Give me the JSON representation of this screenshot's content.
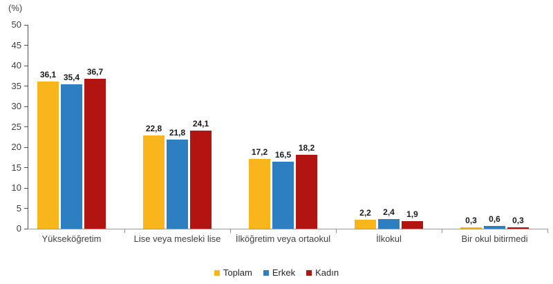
{
  "chart_data": {
    "type": "bar",
    "unit_label": "(%)",
    "title": "",
    "xlabel": "",
    "ylabel": "(%)",
    "ylim": [
      0,
      50
    ],
    "grid": false,
    "categories": [
      "Yükseköğretim",
      "Lise veya mesleki lise",
      "İlköğretim veya ortaokul",
      "İlkokul",
      "Bir okul bitirmedi"
    ],
    "series": [
      {
        "name": "Toplam",
        "color": "#F9B51C",
        "values": [
          36.1,
          22.8,
          17.2,
          2.2,
          0.3
        ],
        "labels": [
          "36,1",
          "22,8",
          "17,2",
          "2,2",
          "0,3"
        ]
      },
      {
        "name": "Erkek",
        "color": "#2E7FC2",
        "values": [
          35.4,
          21.8,
          16.5,
          2.4,
          0.6
        ],
        "labels": [
          "35,4",
          "21,8",
          "16,5",
          "2,4",
          "0,6"
        ]
      },
      {
        "name": "Kadın",
        "color": "#B21511",
        "values": [
          36.7,
          24.1,
          18.2,
          1.9,
          0.3
        ],
        "labels": [
          "36,7",
          "24,1",
          "18,2",
          "1,9",
          "0,3"
        ]
      }
    ],
    "y_axis": {
      "min": 0,
      "max": 50,
      "step": 5,
      "tick_labels": [
        "0",
        "5",
        "10",
        "15",
        "20",
        "25",
        "30",
        "35",
        "40",
        "45",
        "50"
      ]
    },
    "legend": {
      "position": "bottom",
      "items": [
        "Toplam",
        "Erkek",
        "Kadın"
      ]
    }
  }
}
